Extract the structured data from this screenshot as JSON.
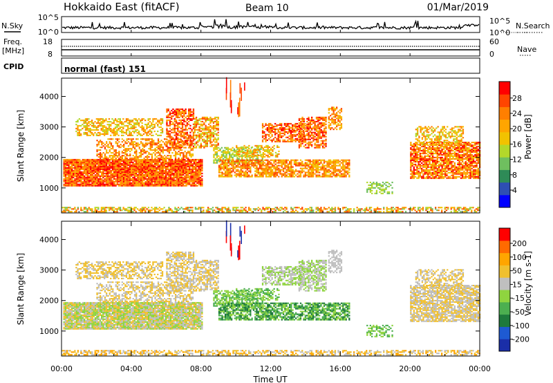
{
  "header": {
    "title": "Hokkaido East (fitACF)",
    "beam": "Beam 10",
    "date": "01/Mar/2019"
  },
  "strip_labels": {
    "nsky": "N.Sky",
    "nsearch": "N.Search",
    "freq_line1": "Freq.",
    "freq_line2": "[MHz]",
    "nave": "Nave",
    "cpid": "CPID",
    "cpid_value": "normal (fast) 151"
  },
  "noise_axis": {
    "left": [
      "10^5",
      "10^0"
    ],
    "right": [
      "10^5",
      "10^0"
    ]
  },
  "freq_axis": {
    "left": [
      "18",
      "8"
    ],
    "right": [
      "60",
      "0"
    ]
  },
  "time_axis": {
    "label": "Time UT",
    "ticks": [
      "00:00",
      "04:00",
      "08:00",
      "12:00",
      "16:00",
      "20:00",
      "00:00"
    ],
    "range_hours": [
      0,
      24
    ]
  },
  "colors": {
    "power_scale": [
      "#0000ff",
      "#2e4fb3",
      "#2e8b57",
      "#6fbf5f",
      "#b3d82a",
      "#f2c200",
      "#ffa500",
      "#ff7f00",
      "#ff4500",
      "#ff0000"
    ],
    "velocity_scale": [
      "#1a2ea8",
      "#1e5ad2",
      "#1e7a3c",
      "#4caf50",
      "#8fd43f",
      "#bfbfbf",
      "#f0c030",
      "#ffa500",
      "#ff6a00",
      "#ff0000"
    ]
  },
  "chart_data": [
    {
      "type": "heatmap",
      "name": "power-panel",
      "ylabel": "Slant Range [km]",
      "yticks": [
        1000,
        2000,
        3000,
        4000
      ],
      "ylim": [
        180,
        4600
      ],
      "colorbar": {
        "label": "Power [dB]",
        "ticks": [
          "4",
          "8",
          "12",
          "16",
          "20",
          "24",
          "28"
        ],
        "range": [
          0,
          30
        ]
      }
    },
    {
      "type": "heatmap",
      "name": "velocity-panel",
      "ylabel": "Slant Range [km]",
      "yticks": [
        1000,
        2000,
        3000,
        4000
      ],
      "ylim": [
        180,
        4600
      ],
      "colorbar": {
        "label": "Velocity [m s-1]",
        "ticks": [
          "200",
          "100",
          "50",
          "15",
          "-15",
          "-50",
          "-100",
          "-200"
        ],
        "range": [
          -250,
          250
        ]
      }
    }
  ]
}
